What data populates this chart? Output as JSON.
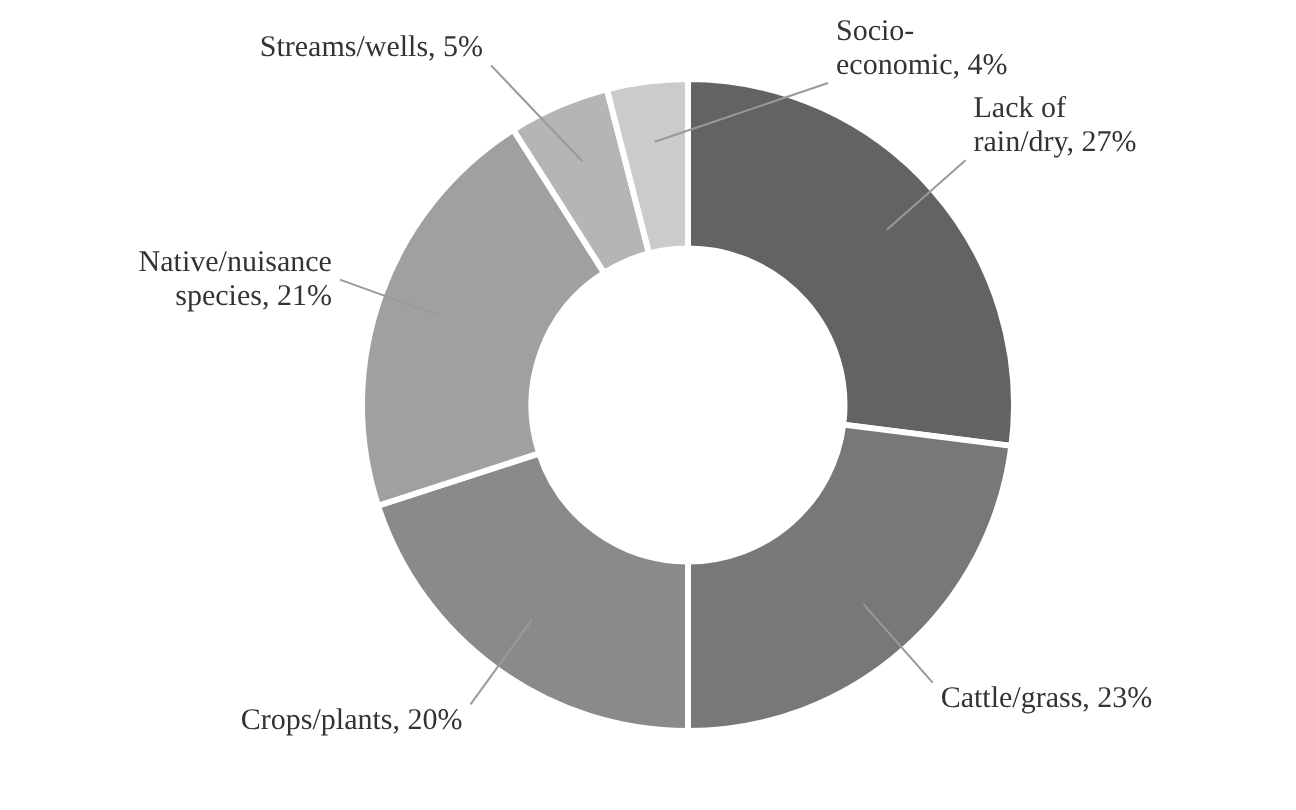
{
  "chart_data": {
    "type": "donut",
    "categories": [
      "Lack of rain/dry",
      "Cattle/grass",
      "Crops/plants",
      "Native/nuisance species",
      "Streams/wells",
      "Socio-economic"
    ],
    "values": [
      27,
      23,
      20,
      21,
      5,
      4
    ],
    "value_labels": [
      "27%",
      "23%",
      "20%",
      "21%",
      "5%",
      "4%"
    ],
    "colors": [
      "#636363",
      "#787878",
      "#8a8a8a",
      "#a0a0a0",
      "#b5b5b5",
      "#cbcbcb"
    ],
    "legend": false
  }
}
